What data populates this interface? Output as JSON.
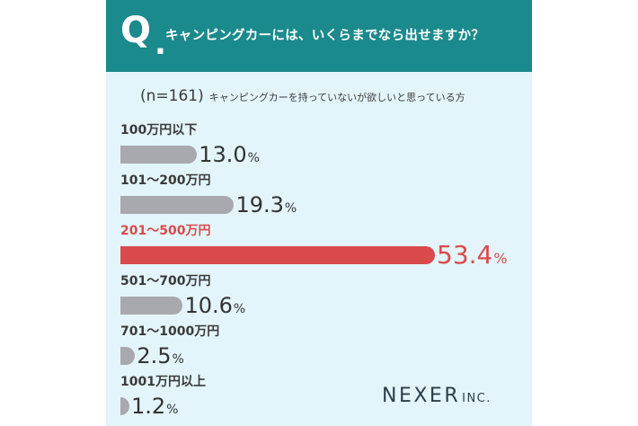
{
  "header": {
    "q_mark": "Q",
    "q_dot": ".",
    "question": "キャンピングカーには、いくらまでなら出せますか？"
  },
  "subheader": {
    "sample": "(n=161)",
    "description": "キャンピングカーを持っていないが欲しいと思っている方"
  },
  "chart_data": {
    "type": "bar",
    "orientation": "horizontal",
    "title": "キャンピングカーには、いくらまでなら出せますか？",
    "categories": [
      "100万円以下",
      "101〜200万円",
      "201〜500万円",
      "501〜700万円",
      "701〜1000万円",
      "1001万円以上"
    ],
    "values": [
      13.0,
      19.3,
      53.4,
      10.6,
      2.5,
      1.2
    ],
    "value_labels": [
      "13.0",
      "19.3",
      "53.4",
      "10.6",
      "2.5",
      "1.2"
    ],
    "unit": "%",
    "highlight_index": 2,
    "colors": {
      "default": "#a8a9ae",
      "highlight": "#d94b4b",
      "header": "#1b8a8c",
      "background": "#e3f5fa"
    }
  },
  "branding": {
    "logo_main": "NEXER",
    "logo_suffix": "INC."
  }
}
